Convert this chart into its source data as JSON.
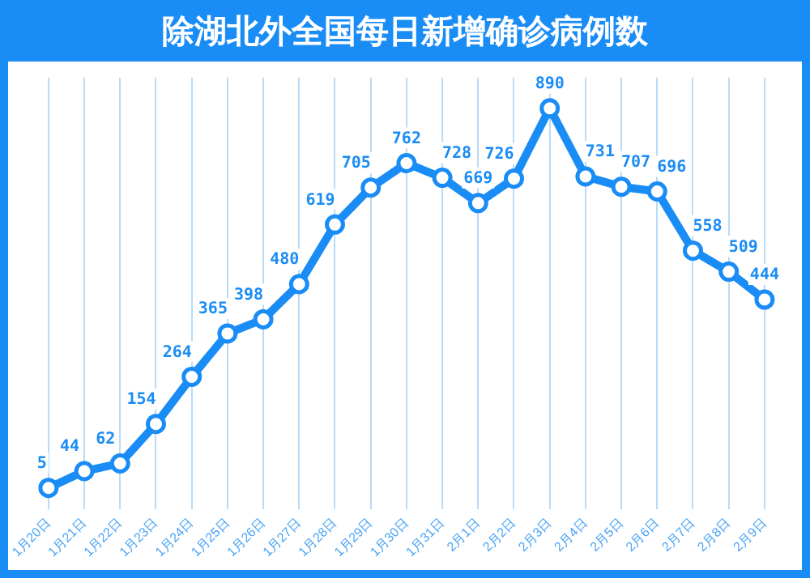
{
  "chart_data": {
    "type": "line",
    "title": "除湖北外全国每日新增确诊病例数",
    "categories": [
      "1月20日",
      "1月21日",
      "1月22日",
      "1月23日",
      "1月24日",
      "1月25日",
      "1月26日",
      "1月27日",
      "1月28日",
      "1月29日",
      "1月30日",
      "1月31日",
      "2月1日",
      "2月2日",
      "2月3日",
      "2月4日",
      "2月5日",
      "2月6日",
      "2月7日",
      "2月8日",
      "2月9日"
    ],
    "series": [
      {
        "color": "#1a8cf5",
        "values": [
          5,
          44,
          62,
          154,
          264,
          365,
          398,
          480,
          619,
          705,
          762,
          728,
          669,
          726,
          890,
          731,
          707,
          696,
          558,
          509,
          444
        ]
      }
    ],
    "data_labels": true,
    "grid": "x",
    "marker": "circle",
    "line_style": "solid"
  }
}
